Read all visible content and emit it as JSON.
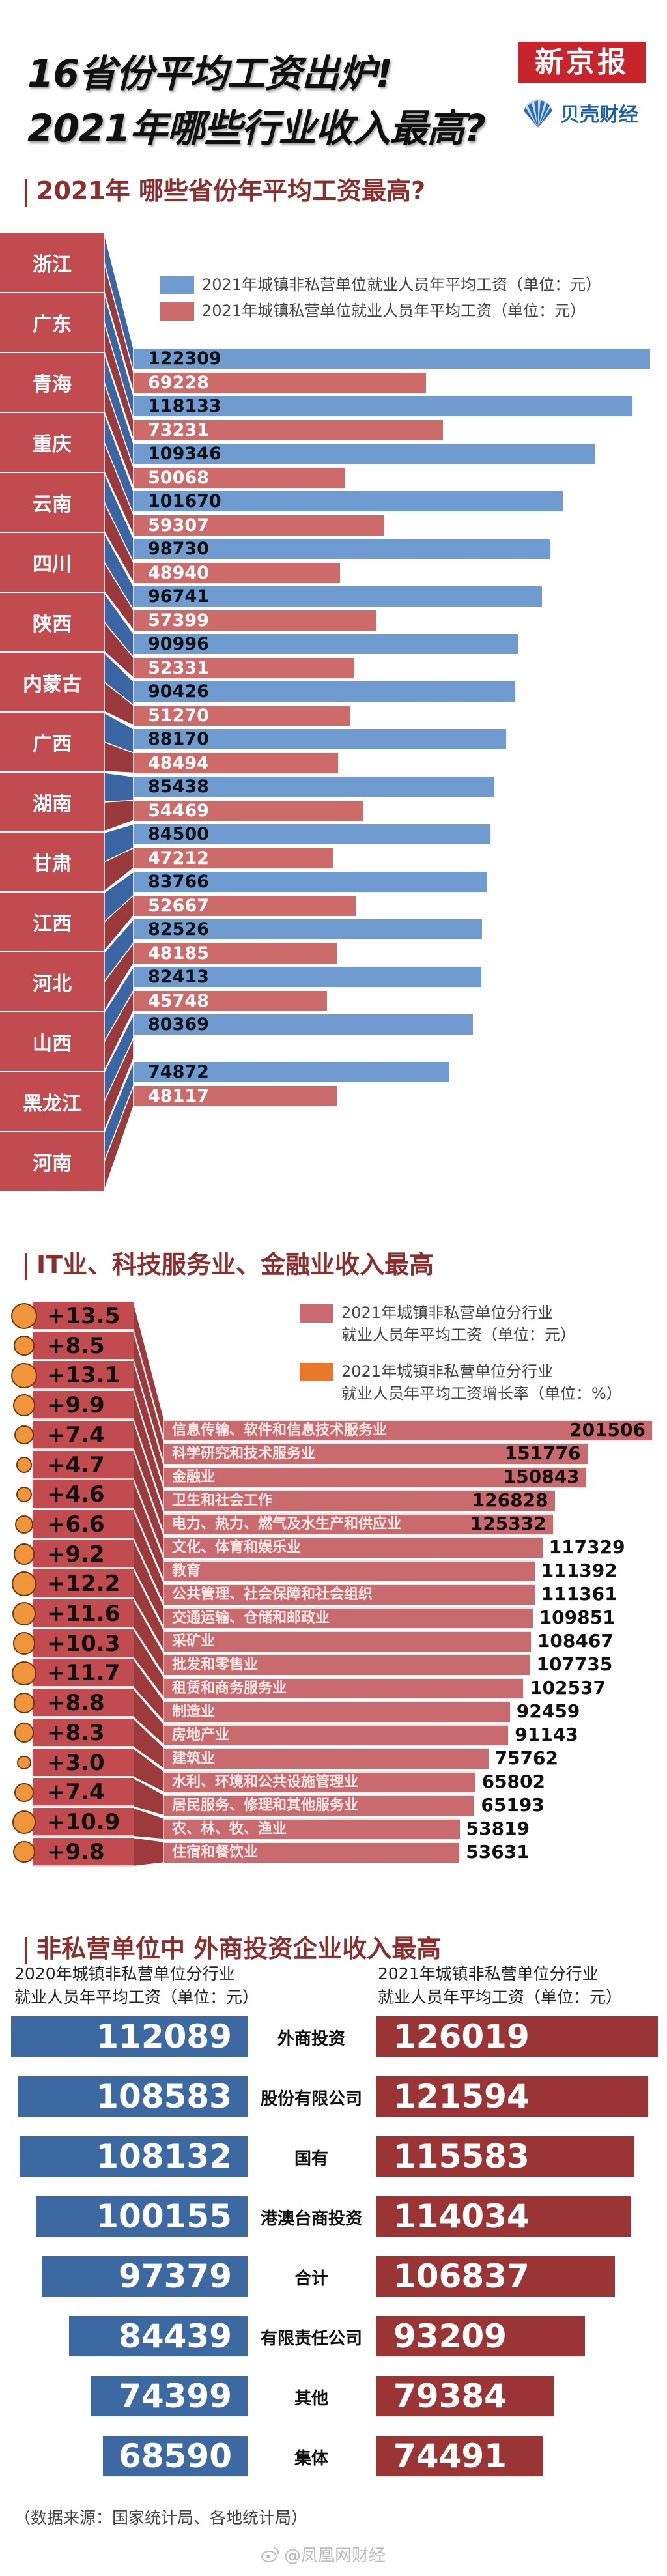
{
  "header": {
    "title_line1": "16省份平均工资出炉!",
    "title_line2": "2021年哪些行业收入最高?",
    "logo_xjb": "新京报",
    "logo_bk": "贝壳财经"
  },
  "section1": {
    "heading": "2021年 哪些省份年平均工资最高?",
    "legend": [
      "2021年城镇非私营单位就业人员年平均工资（单位：元）",
      "2021年城镇私营单位就业人员年平均工资（单位：元）"
    ]
  },
  "section2": {
    "heading": "IT业、科技服务业、金融业收入最高",
    "legend": [
      [
        "2021年城镇非私营单位分行业",
        "就业人员年平均工资（单位：元）"
      ],
      [
        "2021年城镇非私营单位分行业",
        "就业人员年平均工资增长率（单位：%）"
      ]
    ]
  },
  "section3": {
    "heading": "非私营单位中 外商投资企业收入最高",
    "col_left": [
      "2020年城镇非私营单位分行业",
      "就业人员年平均工资（单位：元）"
    ],
    "col_right": [
      "2021年城镇非私营单位分行业",
      "就业人员年平均工资（单位：元）"
    ]
  },
  "footer": {
    "source": "（数据来源：国家统计局、各地统计局）",
    "watermark": "@凤凰网财经"
  },
  "colors": {
    "blue": "#6f9bd0",
    "red": "#cd6b6b",
    "label_red": "#c14b4e",
    "industry_bar": "#c96a6e",
    "growth_orange": "#f0953a",
    "s3_blue": "#3d69a2",
    "s3_red": "#9b3535",
    "heading": "#8a2e2e"
  },
  "chart_data": [
    {
      "type": "bar",
      "title": "2021年 哪些省份年平均工资最高?",
      "categories": [
        "浙江",
        "广东",
        "青海",
        "重庆",
        "云南",
        "四川",
        "陕西",
        "内蒙古",
        "广西",
        "湖南",
        "甘肃",
        "江西",
        "河北",
        "山西",
        "黑龙江",
        "河南"
      ],
      "series": [
        {
          "name": "2021年城镇非私营单位就业人员年平均工资（单位：元）",
          "values": [
            122309,
            118133,
            109346,
            101670,
            98730,
            96741,
            90996,
            90426,
            88170,
            85438,
            84500,
            83766,
            82526,
            82413,
            80369,
            74872
          ]
        },
        {
          "name": "2021年城镇私营单位就业人员年平均工资（单位：元）",
          "values": [
            69228,
            73231,
            50068,
            59307,
            48940,
            57399,
            52331,
            51270,
            48494,
            54469,
            47212,
            52667,
            48185,
            45748,
            null,
            48117
          ]
        }
      ],
      "orientation": "horizontal",
      "legend": "top-right"
    },
    {
      "type": "bar",
      "title": "IT业、科技服务业、金融业收入最高",
      "categories": [
        "信息传输、软件和信息技术服务业",
        "科学研究和技术服务业",
        "金融业",
        "卫生和社会工作",
        "电力、热力、燃气及水生产和供应业",
        "文化、体育和娱乐业",
        "教育",
        "公共管理、社会保障和社会组织",
        "交通运输、仓储和邮政业",
        "采矿业",
        "批发和零售业",
        "租赁和商务服务业",
        "制造业",
        "房地产业",
        "建筑业",
        "水利、环境和公共设施管理业",
        "居民服务、修理和其他服务业",
        "农、林、牧、渔业",
        "住宿和餐饮业"
      ],
      "series": [
        {
          "name": "2021年城镇非私营单位分行业就业人员年平均工资（单位：元）",
          "values": [
            201506,
            151776,
            150843,
            126828,
            125332,
            117329,
            111392,
            111361,
            109851,
            108467,
            107735,
            102537,
            92459,
            91143,
            75762,
            65802,
            65193,
            53819,
            53631
          ]
        },
        {
          "name": "2021年城镇非私营单位分行业就业人员年平均工资增长率（单位：%）",
          "values": [
            "+13.5",
            "+8.5",
            "+13.1",
            "+9.9",
            "+7.4",
            "+4.7",
            "+4.6",
            "+6.6",
            "+9.2",
            "+12.2",
            "+11.6",
            "+10.3",
            "+11.7",
            "+8.8",
            "+8.3",
            "+3.0",
            "+7.4",
            "+10.9",
            "+9.8"
          ]
        }
      ],
      "orientation": "horizontal",
      "legend": "top-right"
    },
    {
      "type": "bar",
      "title": "非私营单位中 外商投资企业收入最高",
      "categories": [
        "外商投资",
        "股份有限公司",
        "国有",
        "港澳台商投资",
        "合计",
        "有限责任公司",
        "其他",
        "集体"
      ],
      "series": [
        {
          "name": "2020年城镇非私营单位分行业就业人员年平均工资（单位：元）",
          "values": [
            112089,
            108583,
            108132,
            100155,
            97379,
            84439,
            74399,
            68590
          ]
        },
        {
          "name": "2021年城镇非私营单位分行业就业人员年平均工资（单位：元）",
          "values": [
            126019,
            121594,
            115583,
            114034,
            106837,
            93209,
            79384,
            74491
          ]
        }
      ],
      "orientation": "horizontal-butterfly",
      "legend": "top"
    }
  ]
}
